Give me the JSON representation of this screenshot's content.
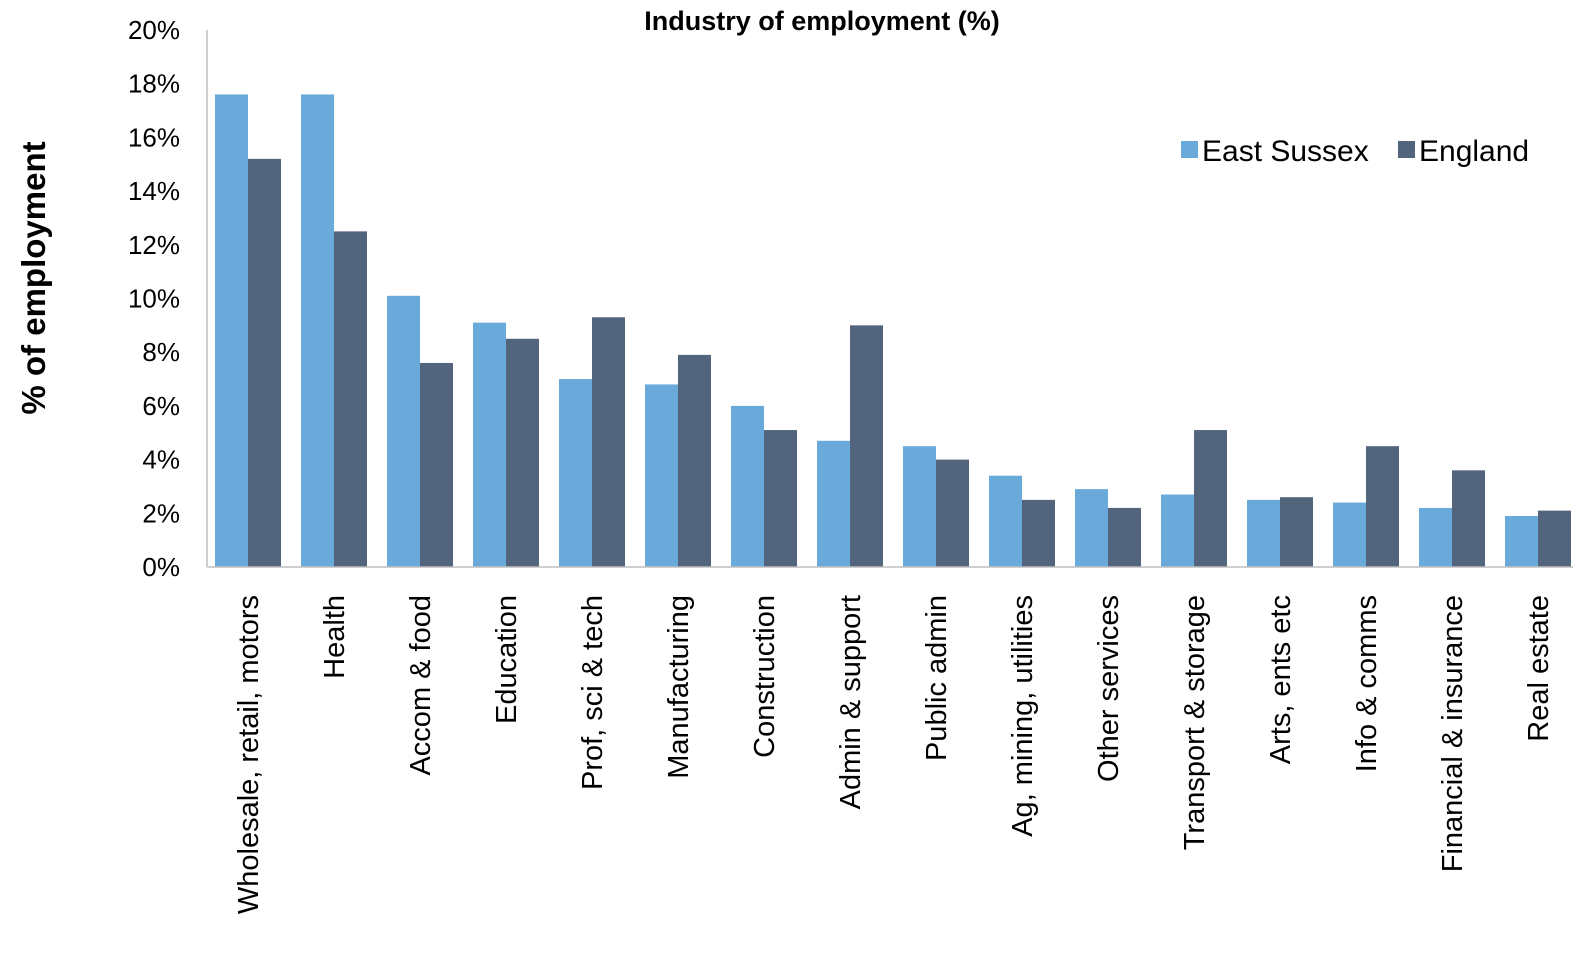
{
  "chart_data": {
    "type": "bar",
    "title": "Industry of employment (%)",
    "xlabel": "",
    "ylabel": "% of employment",
    "ylim": [
      0,
      20
    ],
    "yticks": [
      "0%",
      "2%",
      "4%",
      "6%",
      "8%",
      "10%",
      "12%",
      "14%",
      "16%",
      "18%",
      "20%"
    ],
    "grid": false,
    "legend_position": "top-right",
    "categories": [
      "Wholesale, retail, motors",
      "Health",
      "Accom & food",
      "Education",
      "Prof, sci & tech",
      "Manufacturing",
      "Construction",
      "Admin & support",
      "Public admin",
      "Ag, mining, utilities",
      "Other services",
      "Transport & storage",
      "Arts, ents etc",
      "Info & comms",
      "Financial & insurance",
      "Real estate"
    ],
    "series": [
      {
        "name": "East Sussex",
        "color": "#6aaadb",
        "values": [
          17.6,
          17.6,
          10.1,
          9.1,
          7.0,
          6.8,
          6.0,
          4.7,
          4.5,
          3.4,
          2.9,
          2.7,
          2.5,
          2.4,
          2.2,
          1.9
        ]
      },
      {
        "name": "England",
        "color": "#53657d",
        "values": [
          15.2,
          12.5,
          7.6,
          8.5,
          9.3,
          7.9,
          5.1,
          9.0,
          4.0,
          2.5,
          2.2,
          5.1,
          2.6,
          4.5,
          3.6,
          2.1
        ]
      }
    ]
  }
}
